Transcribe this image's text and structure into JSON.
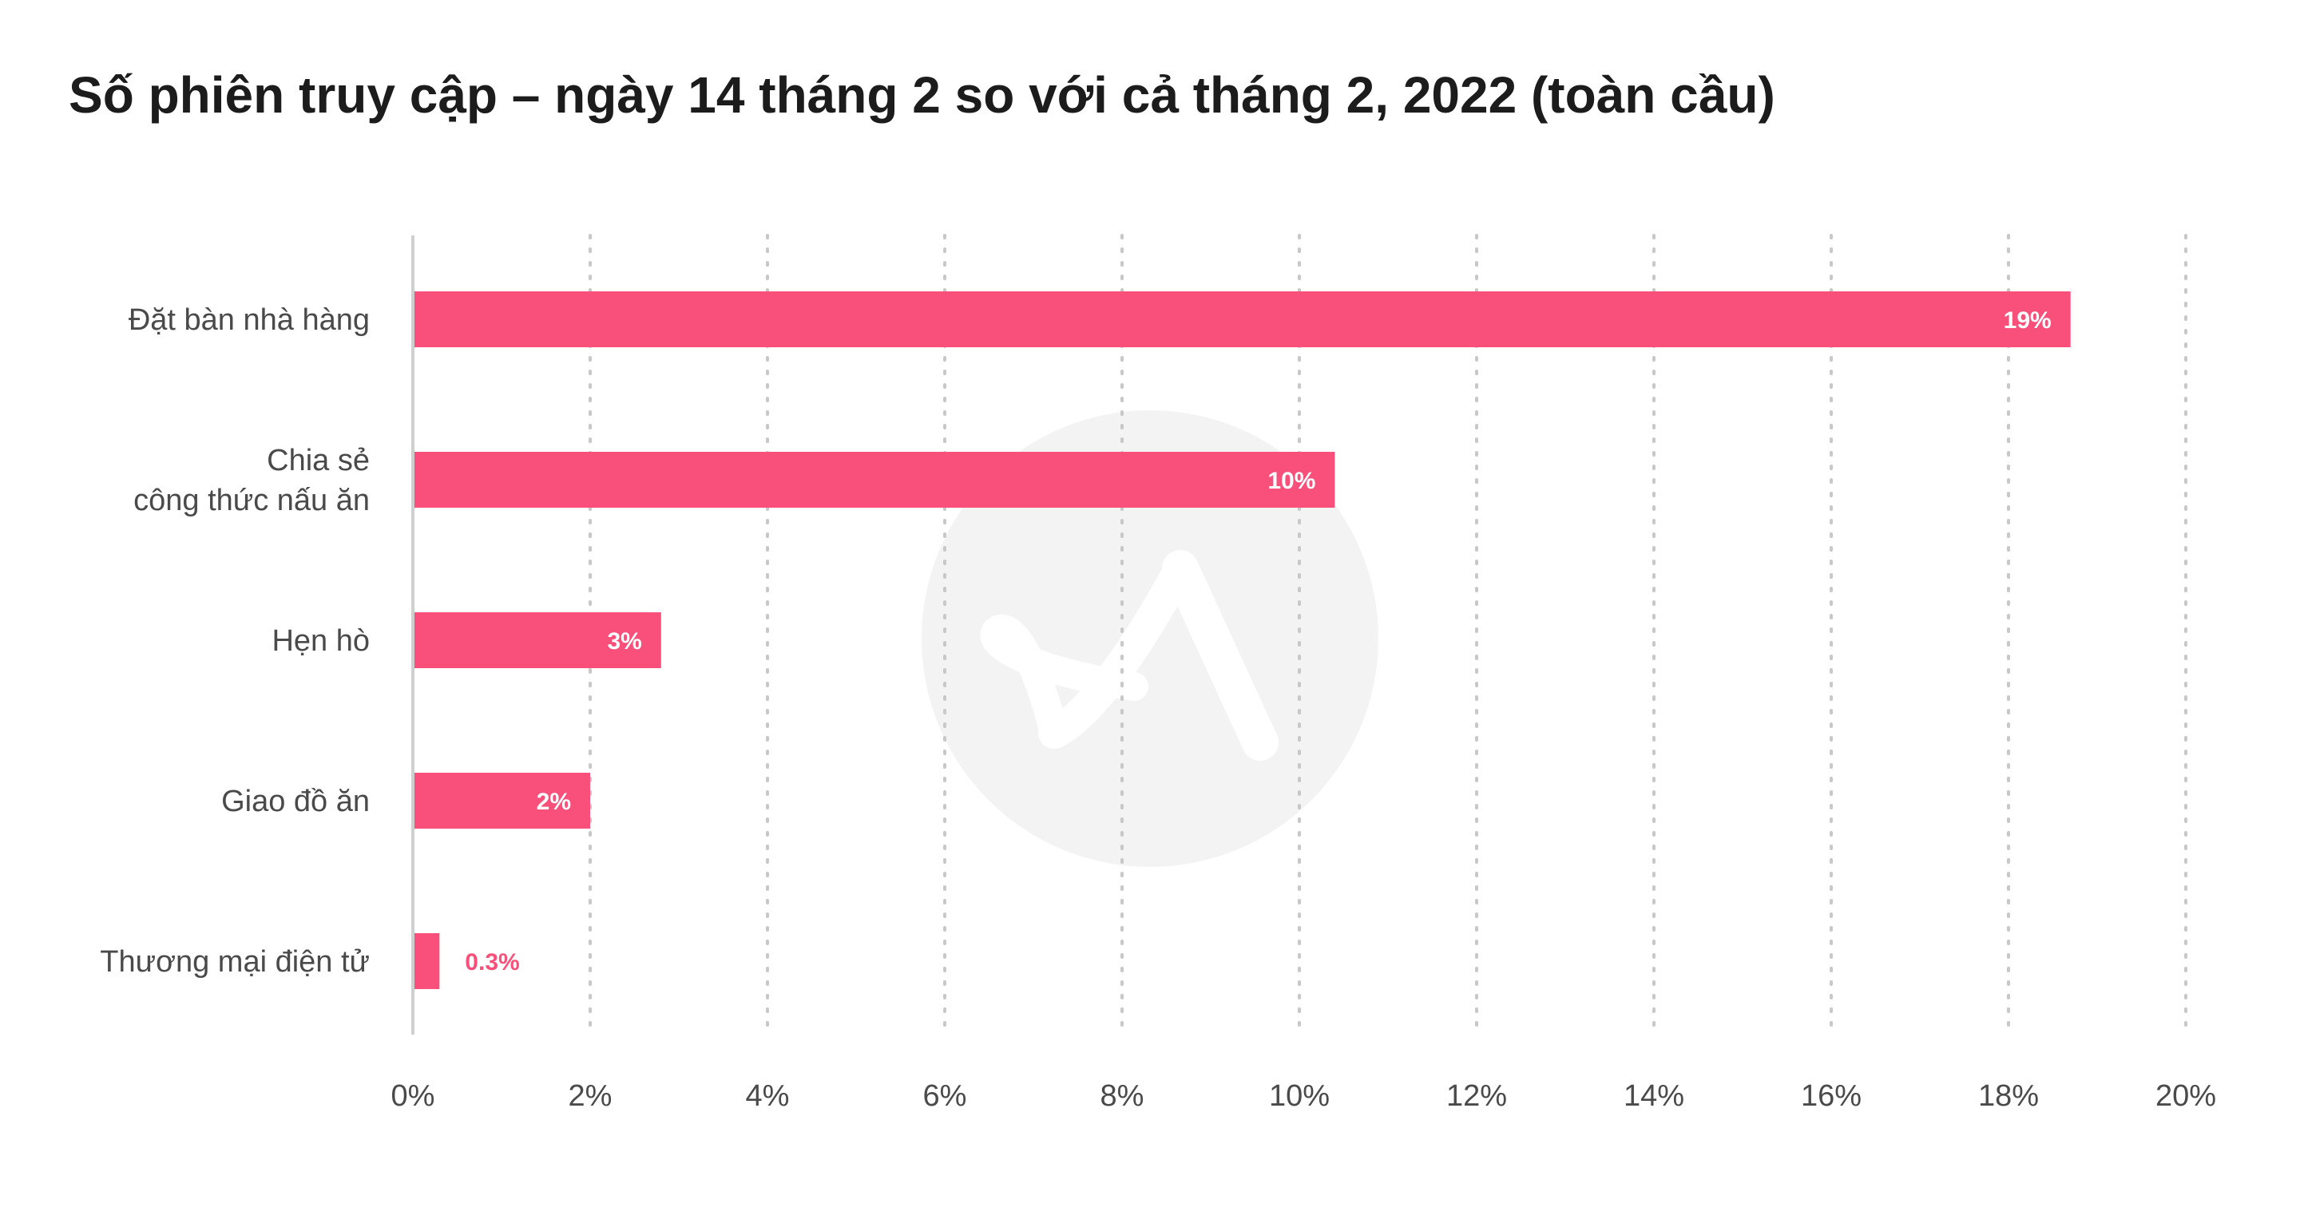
{
  "title": "Số phiên truy cập – ngày 14 tháng 2 so với cả tháng 2, 2022 (toàn cầu)",
  "colors": {
    "bar": "#f8507a",
    "label_inside": "#ffffff",
    "label_outside": "#f8507a",
    "grid": "#c8c8c8",
    "axis": "#cfcfcf",
    "watermark": "#f3f3f3"
  },
  "watermark_icon": "brand-logo-watermark",
  "chart_data": {
    "type": "bar",
    "orientation": "horizontal",
    "categories": [
      [
        "Đặt bàn nhà hàng"
      ],
      [
        "Chia sẻ",
        "công thức nấu ăn"
      ],
      [
        "Hẹn hò"
      ],
      [
        "Giao đồ ăn"
      ],
      [
        "Thương mại điện tử"
      ]
    ],
    "values": [
      18.7,
      10.4,
      2.8,
      2.0,
      0.3
    ],
    "data_labels": [
      "19%",
      "10%",
      "3%",
      "2%",
      "0.3%"
    ],
    "xlim": [
      0,
      20
    ],
    "xticks": [
      "0%",
      "2%",
      "4%",
      "6%",
      "8%",
      "10%",
      "12%",
      "14%",
      "16%",
      "18%",
      "20%"
    ],
    "grid": "vertical dotted",
    "legend": "none"
  }
}
